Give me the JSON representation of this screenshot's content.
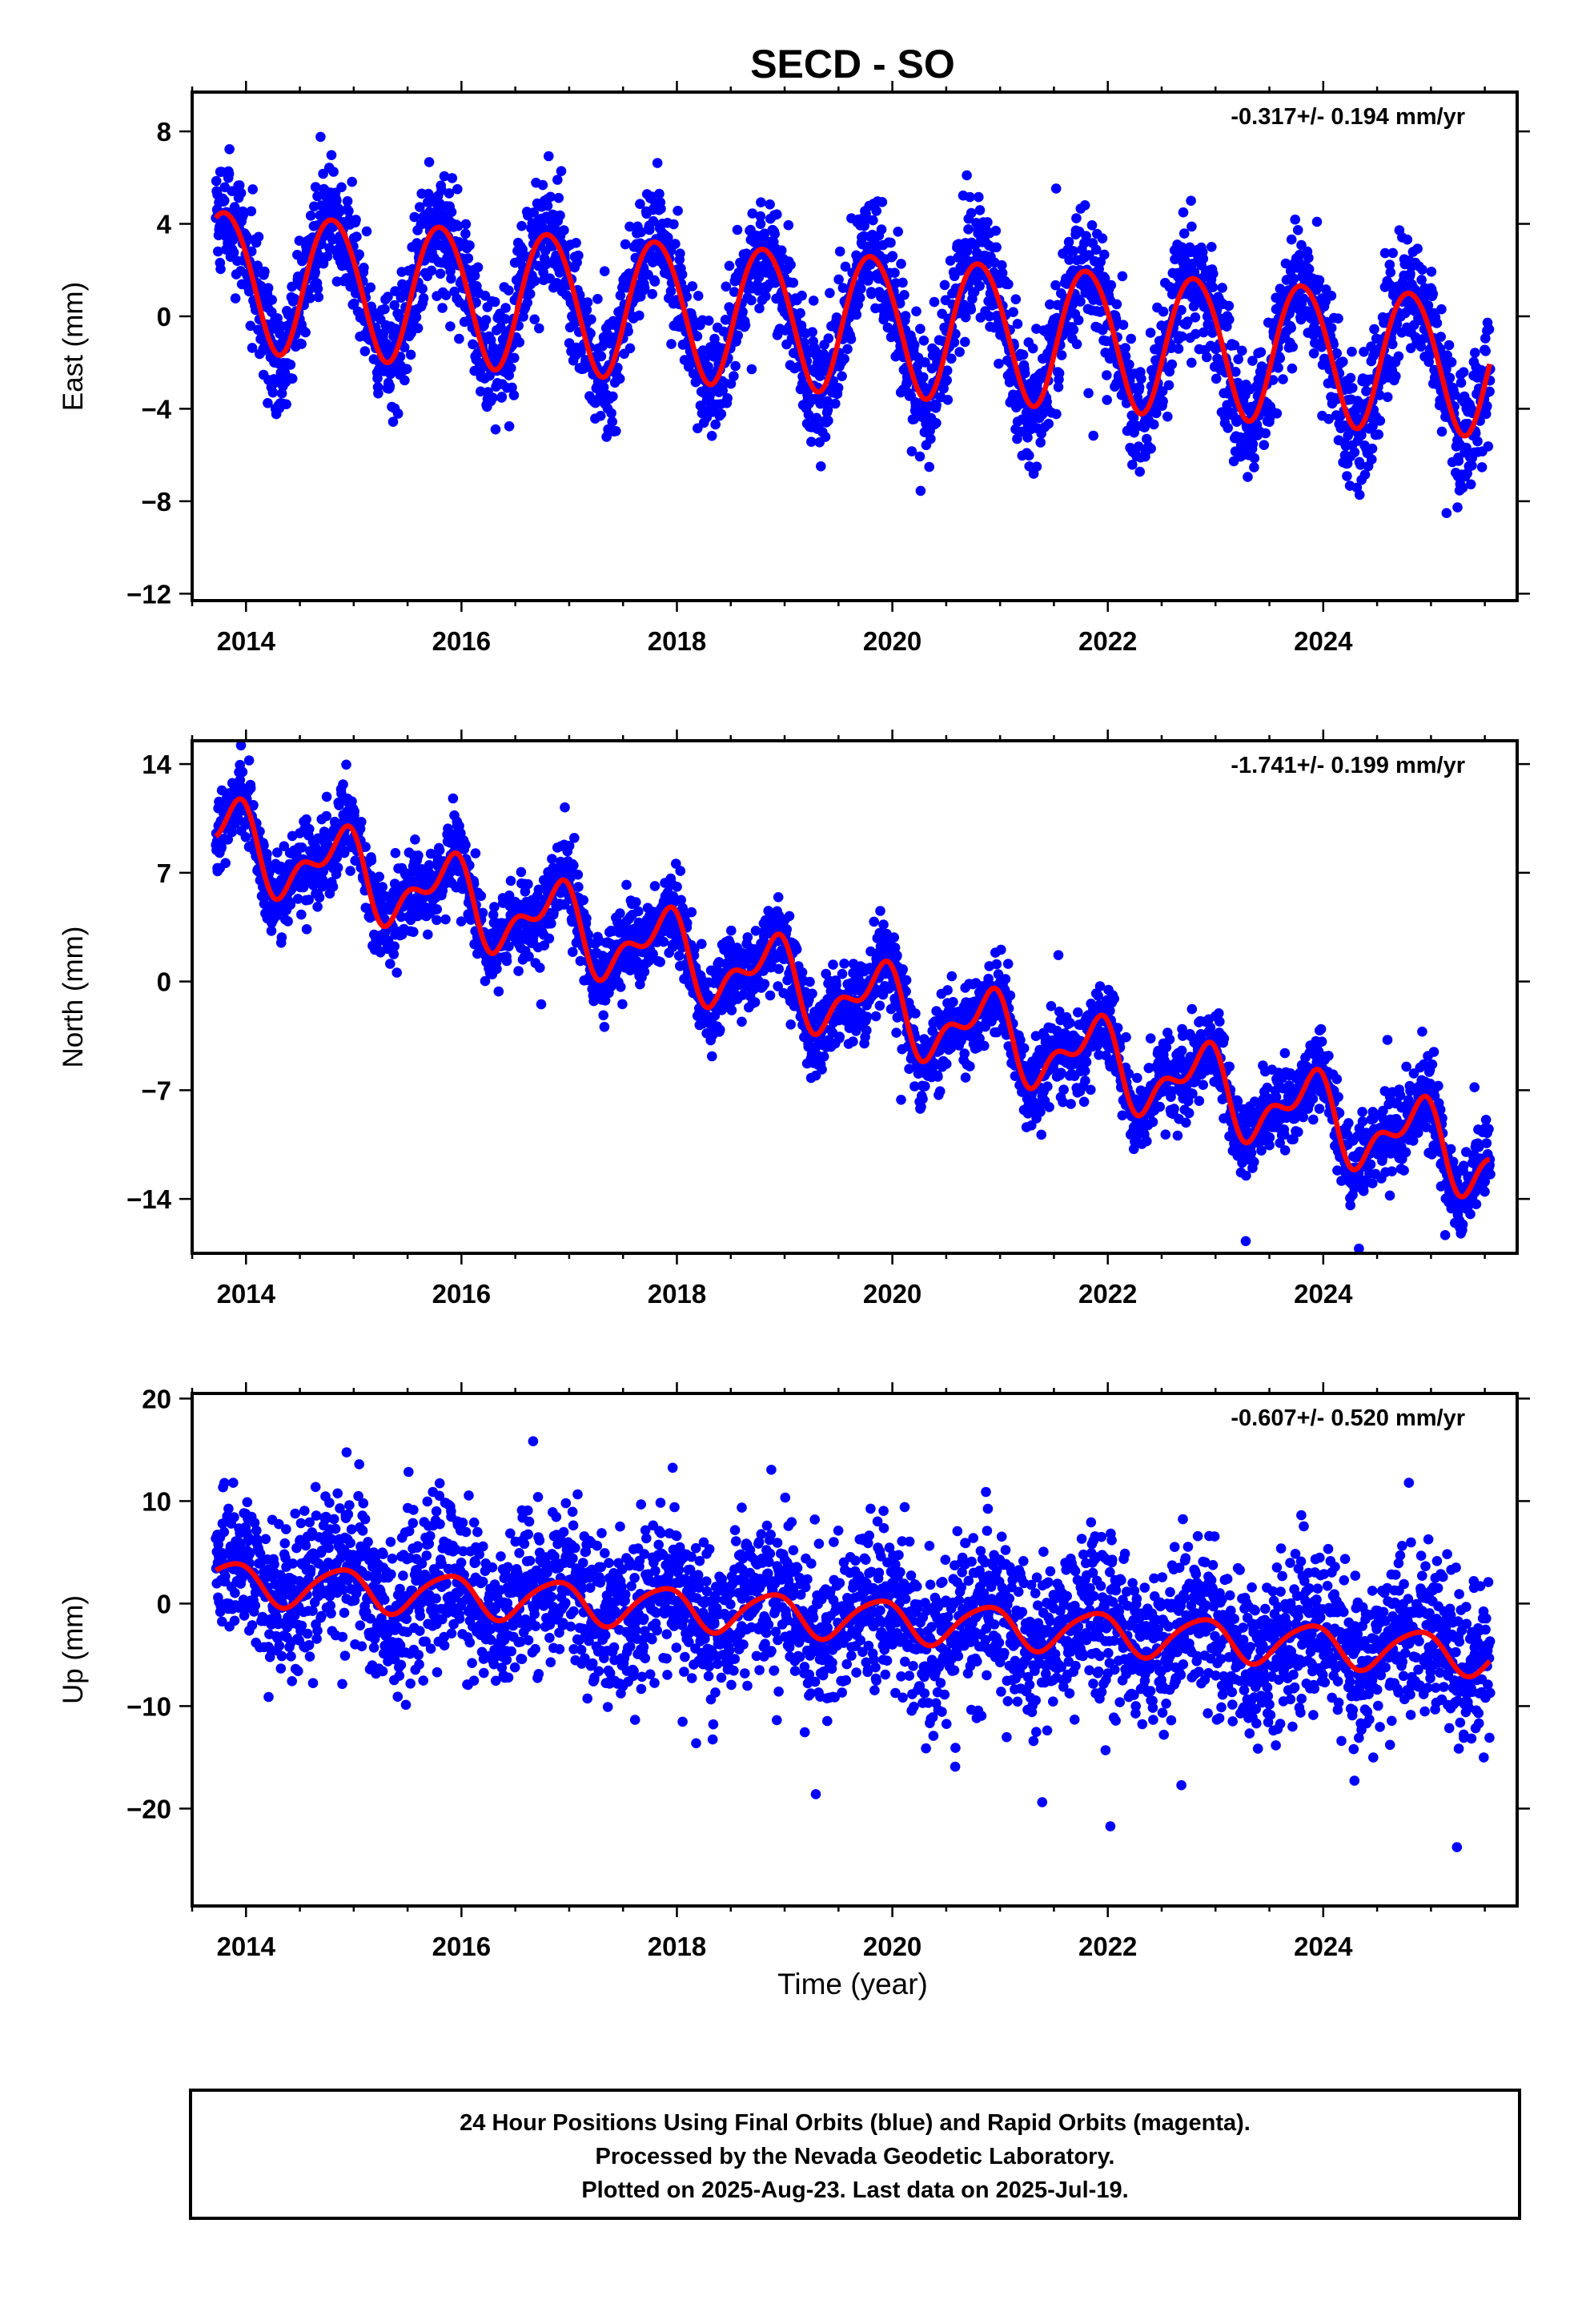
{
  "chart_data": {
    "type": "scatter",
    "title": "SECD - SO",
    "xlabel": "Time (year)",
    "xlim": [
      2013.5,
      2025.8
    ],
    "x_ticks": [
      "2014",
      "2016",
      "2018",
      "2020",
      "2022",
      "2024"
    ],
    "colors": {
      "observations": "#0000ff",
      "model": "#ff0000",
      "frame": "#000000"
    },
    "panels": [
      {
        "component": "East",
        "ylabel": "East (mm)",
        "ylim": [
          -12.3,
          9.7
        ],
        "y_ticks": [
          "8",
          "4",
          "0",
          "−4",
          "−8",
          "−12"
        ],
        "rate": "-0.317+/- 0.194 mm/yr",
        "model": {
          "start": 2013.72,
          "end": 2025.55,
          "offset_mm": 1.6,
          "velocity_mm_per_yr": -0.317,
          "annual_amplitude_mm": 3.0,
          "annual_phase_rad": 2.8,
          "semiannual_amplitude_mm": 0.2,
          "semiannual_phase_rad": 0.5
        },
        "scatter_mm": 1.3
      },
      {
        "component": "North",
        "ylabel": "North (mm)",
        "ylim": [
          -17.5,
          15.5
        ],
        "y_ticks": [
          "14",
          "7",
          "0",
          "−7",
          "−14"
        ],
        "rate": "-1.741+/- 0.199 mm/yr",
        "model": {
          "start": 2013.72,
          "end": 2025.55,
          "offset_mm": 8.7,
          "velocity_mm_per_yr": -1.741,
          "annual_amplitude_mm": 2.2,
          "annual_phase_rad": 2.4,
          "semiannual_amplitude_mm": 1.2,
          "semiannual_phase_rad": 1.7
        },
        "scatter_mm": 1.3
      },
      {
        "component": "Up",
        "ylabel": "Up (mm)",
        "ylim": [
          -29.5,
          20.5
        ],
        "y_ticks": [
          "20",
          "10",
          "0",
          "−10",
          "−20"
        ],
        "rate": "-0.607+/- 0.520 mm/yr",
        "model": {
          "start": 2013.72,
          "end": 2025.55,
          "offset_mm": 2.0,
          "velocity_mm_per_yr": -0.607,
          "annual_amplitude_mm": 2.0,
          "annual_phase_rad": 2.4,
          "semiannual_amplitude_mm": 0.3,
          "semiannual_phase_rad": 0.8
        },
        "scatter_mm": 3.8
      }
    ]
  },
  "footer": {
    "line1": "24 Hour Positions Using Final Orbits (blue) and Rapid Orbits (magenta).",
    "line2": "Processed by the Nevada Geodetic Laboratory.",
    "line3": "Plotted on 2025-Aug-23. Last data on 2025-Jul-19."
  }
}
